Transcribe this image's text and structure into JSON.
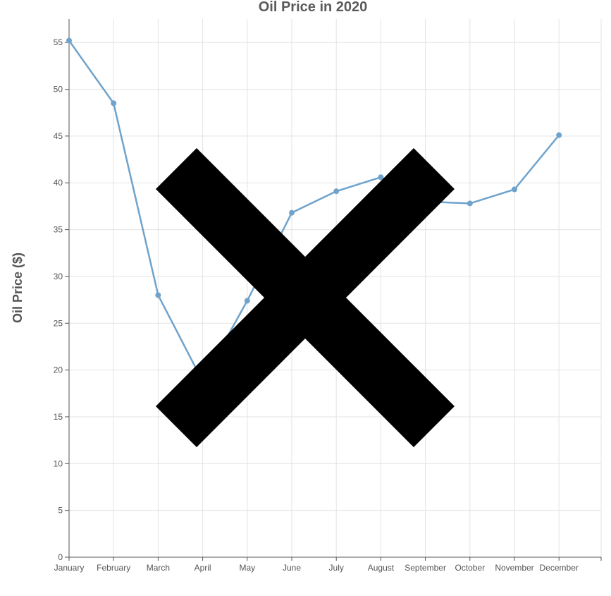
{
  "chart_data": {
    "type": "line",
    "title": "Oil Price in 2020",
    "xlabel": "",
    "ylabel": "Oil Price ($)",
    "categories": [
      "January",
      "February",
      "March",
      "April",
      "May",
      "June",
      "July",
      "August",
      "September",
      "October",
      "November",
      "December"
    ],
    "series": [
      {
        "values": [
          55.2,
          48.5,
          28.0,
          18.8,
          27.4,
          36.8,
          39.1,
          40.6,
          38.0,
          37.8,
          39.3,
          45.1
        ]
      }
    ],
    "y_ticks": [
      0,
      5,
      10,
      15,
      20,
      25,
      30,
      35,
      40,
      45,
      50,
      55
    ],
    "ylim": [
      0,
      57.5
    ],
    "grid": true,
    "colors": {
      "line": "#6fa3cc",
      "overlay": "#000000"
    },
    "overlay": "x-mark"
  }
}
